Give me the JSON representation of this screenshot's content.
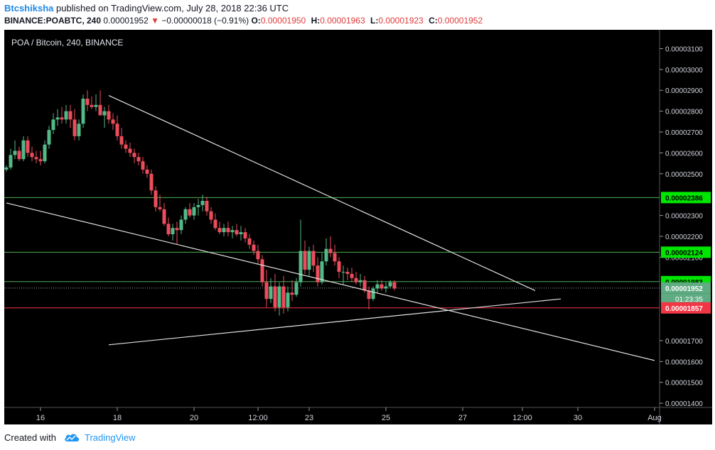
{
  "header": {
    "user": "Btcshiksha",
    "published": "published on TradingView.com, July 28, 2018 22:36 UTC",
    "symbol": "BINANCE:POABTC, 240",
    "last": "0.00001952",
    "change": "−0.00000018 (−0.91%)",
    "o_label": "O:",
    "o": "0.00001950",
    "h_label": "H:",
    "h": "0.00001963",
    "l_label": "L:",
    "l": "0.00001923",
    "c_label": "C:",
    "c": "0.00001952"
  },
  "footer": {
    "created_with": "Created with",
    "brand": "TradingView"
  },
  "chart_data": {
    "type": "candlestick",
    "title": "POA / Bitcoin, 240, BINANCE",
    "ylim": [
      1.38e-05,
      3.19e-05
    ],
    "y_ticks": [
      "0.00003100",
      "0.00003000",
      "0.00002900",
      "0.00002800",
      "0.00002700",
      "0.00002600",
      "0.00002500",
      "0.00002300",
      "0.00002200",
      "0.00002100",
      "0.00001700",
      "0.00001600",
      "0.00001500",
      "0.00001400"
    ],
    "x_ticks": [
      {
        "label": "16",
        "i": 8
      },
      {
        "label": "18",
        "i": 26
      },
      {
        "label": "20",
        "i": 44
      },
      {
        "label": "12:00",
        "i": 59
      },
      {
        "label": "23",
        "i": 71
      },
      {
        "label": "25",
        "i": 89
      },
      {
        "label": "27",
        "i": 107
      },
      {
        "label": "12:00",
        "i": 121
      },
      {
        "label": "30",
        "i": 134
      },
      {
        "label": "Aug",
        "i": 152
      }
    ],
    "price_levels": [
      {
        "value": 2.386e-05,
        "label": "0.00002386",
        "color": "#4caf50"
      },
      {
        "value": 2.124e-05,
        "label": "0.00002124",
        "color": "#4caf50"
      },
      {
        "value": 1.983e-05,
        "label": "0.00001983",
        "color": "#4caf50"
      }
    ],
    "red_level": {
      "value": 1.857e-05,
      "label": "0.00001857",
      "color": "#f23645"
    },
    "last_price": {
      "value": 1.952e-05,
      "label": "0.00001952",
      "timer": "01:23:35",
      "color": "#5fab82"
    },
    "trend_lines": [
      {
        "from": [
          24,
          2.875e-05
        ],
        "to": [
          124,
          1.94e-05
        ]
      },
      {
        "from": [
          0,
          2.36e-05
        ],
        "to": [
          152,
          1.605e-05
        ]
      },
      {
        "from": [
          24,
          1.68e-05
        ],
        "to": [
          130,
          1.9e-05
        ]
      }
    ],
    "candles": [
      [
        2.52e-05,
        2.54e-05,
        2.51e-05,
        2.53e-05
      ],
      [
        2.53e-05,
        2.62e-05,
        2.52e-05,
        2.59e-05
      ],
      [
        2.59e-05,
        2.66e-05,
        2.57e-05,
        2.61e-05
      ],
      [
        2.61e-05,
        2.63e-05,
        2.56e-05,
        2.57e-05
      ],
      [
        2.57e-05,
        2.68e-05,
        2.56e-05,
        2.66e-05
      ],
      [
        2.66e-05,
        2.68e-05,
        2.58e-05,
        2.6e-05
      ],
      [
        2.6e-05,
        2.63e-05,
        2.56e-05,
        2.58e-05
      ],
      [
        2.58e-05,
        2.61e-05,
        2.55e-05,
        2.57e-05
      ],
      [
        2.57e-05,
        2.61e-05,
        2.54e-05,
        2.56e-05
      ],
      [
        2.56e-05,
        2.66e-05,
        2.55e-05,
        2.64e-05
      ],
      [
        2.64e-05,
        2.73e-05,
        2.62e-05,
        2.71e-05
      ],
      [
        2.71e-05,
        2.79e-05,
        2.69e-05,
        2.76e-05
      ],
      [
        2.76e-05,
        2.81e-05,
        2.73e-05,
        2.77e-05
      ],
      [
        2.77e-05,
        2.82e-05,
        2.74e-05,
        2.76e-05
      ],
      [
        2.76e-05,
        2.83e-05,
        2.74e-05,
        2.8e-05
      ],
      [
        2.8e-05,
        2.83e-05,
        2.72e-05,
        2.76e-05
      ],
      [
        2.76e-05,
        2.81e-05,
        2.66e-05,
        2.68e-05
      ],
      [
        2.68e-05,
        2.76e-05,
        2.66e-05,
        2.74e-05
      ],
      [
        2.74e-05,
        2.88e-05,
        2.72e-05,
        2.86e-05
      ],
      [
        2.86e-05,
        2.9e-05,
        2.8e-05,
        2.83e-05
      ],
      [
        2.83e-05,
        2.87e-05,
        2.81e-05,
        2.82e-05
      ],
      [
        2.82e-05,
        2.88e-05,
        2.8e-05,
        2.83e-05
      ],
      [
        2.83e-05,
        2.9e-05,
        2.79e-05,
        2.78e-05
      ],
      [
        2.78e-05,
        2.82e-05,
        2.72e-05,
        2.8e-05
      ],
      [
        2.8e-05,
        2.83e-05,
        2.74e-05,
        2.76e-05
      ],
      [
        2.76e-05,
        2.79e-05,
        2.71e-05,
        2.74e-05
      ],
      [
        2.74e-05,
        2.78e-05,
        2.66e-05,
        2.68e-05
      ],
      [
        2.68e-05,
        2.72e-05,
        2.62e-05,
        2.64e-05
      ],
      [
        2.64e-05,
        2.66e-05,
        2.6e-05,
        2.62e-05
      ],
      [
        2.62e-05,
        2.65e-05,
        2.58e-05,
        2.6e-05
      ],
      [
        2.6e-05,
        2.62e-05,
        2.55e-05,
        2.58e-05
      ],
      [
        2.58e-05,
        2.6e-05,
        2.54e-05,
        2.56e-05
      ],
      [
        2.56e-05,
        2.58e-05,
        2.5e-05,
        2.52e-05
      ],
      [
        2.52e-05,
        2.54e-05,
        2.48e-05,
        2.5e-05
      ],
      [
        2.5e-05,
        2.52e-05,
        2.4e-05,
        2.42e-05
      ],
      [
        2.42e-05,
        2.44e-05,
        2.32e-05,
        2.34e-05
      ],
      [
        2.34e-05,
        2.4e-05,
        2.32e-05,
        2.33e-05
      ],
      [
        2.33e-05,
        2.36e-05,
        2.25e-05,
        2.26e-05
      ],
      [
        2.26e-05,
        2.29e-05,
        2.2e-05,
        2.21e-05
      ],
      [
        2.21e-05,
        2.26e-05,
        2.18e-05,
        2.24e-05
      ],
      [
        2.24e-05,
        2.27e-05,
        2.16e-05,
        2.23e-05
      ],
      [
        2.23e-05,
        2.3e-05,
        2.21e-05,
        2.28e-05
      ],
      [
        2.28e-05,
        2.34e-05,
        2.26e-05,
        2.33e-05
      ],
      [
        2.33e-05,
        2.36e-05,
        2.29e-05,
        2.3e-05
      ],
      [
        2.3e-05,
        2.36e-05,
        2.28e-05,
        2.34e-05
      ],
      [
        2.34e-05,
        2.38e-05,
        2.3e-05,
        2.35e-05
      ],
      [
        2.35e-05,
        2.4e-05,
        2.32e-05,
        2.37e-05
      ],
      [
        2.37e-05,
        2.39e-05,
        2.3e-05,
        2.32e-05
      ],
      [
        2.32e-05,
        2.34e-05,
        2.26e-05,
        2.28e-05
      ],
      [
        2.28e-05,
        2.31e-05,
        2.23e-05,
        2.24e-05
      ],
      [
        2.24e-05,
        2.27e-05,
        2.21e-05,
        2.22e-05
      ],
      [
        2.22e-05,
        2.26e-05,
        2.2e-05,
        2.24e-05
      ],
      [
        2.24e-05,
        2.27e-05,
        2.2e-05,
        2.22e-05
      ],
      [
        2.22e-05,
        2.25e-05,
        2.19e-05,
        2.23e-05
      ],
      [
        2.23e-05,
        2.26e-05,
        2.2e-05,
        2.21e-05
      ],
      [
        2.21e-05,
        2.25e-05,
        2.18e-05,
        2.22e-05
      ],
      [
        2.22e-05,
        2.24e-05,
        2.17e-05,
        2.19e-05
      ],
      [
        2.19e-05,
        2.21e-05,
        2.14e-05,
        2.16e-05
      ],
      [
        2.16e-05,
        2.18e-05,
        2.11e-05,
        2.13e-05
      ],
      [
        2.13e-05,
        2.16e-05,
        2.07e-05,
        2.09e-05
      ],
      [
        2.09e-05,
        2.11e-05,
        1.96e-05,
        1.98e-05
      ],
      [
        1.98e-05,
        2.04e-05,
        1.86e-05,
        1.9e-05
      ],
      [
        1.9e-05,
        2e-05,
        1.88e-05,
        1.96e-05
      ],
      [
        1.96e-05,
        2.02e-05,
        1.84e-05,
        1.86e-05
      ],
      [
        1.86e-05,
        1.98e-05,
        1.82e-05,
        1.96e-05
      ],
      [
        1.96e-05,
        2.01e-05,
        1.83e-05,
        1.86e-05
      ],
      [
        1.86e-05,
        1.96e-05,
        1.84e-05,
        1.93e-05
      ],
      [
        1.93e-05,
        1.99e-05,
        1.89e-05,
        1.92e-05
      ],
      [
        1.92e-05,
        2e-05,
        1.91e-05,
        1.98e-05
      ],
      [
        1.98e-05,
        2.28e-05,
        1.96e-05,
        2.13e-05
      ],
      [
        2.13e-05,
        2.18e-05,
        2.02e-05,
        2.04e-05
      ],
      [
        2.04e-05,
        2.15e-05,
        2.01e-05,
        2.13e-05
      ],
      [
        2.13e-05,
        2.16e-05,
        2.03e-05,
        2.06e-05
      ],
      [
        2.06e-05,
        2.1e-05,
        1.96e-05,
        1.98e-05
      ],
      [
        1.98e-05,
        2.12e-05,
        1.97e-05,
        2.08e-05
      ],
      [
        2.08e-05,
        2.19e-05,
        2.06e-05,
        2.14e-05
      ],
      [
        2.14e-05,
        2.2e-05,
        2.1e-05,
        2.12e-05
      ],
      [
        2.12e-05,
        2.16e-05,
        2.06e-05,
        2.08e-05
      ],
      [
        2.08e-05,
        2.1e-05,
        2e-05,
        2.03e-05
      ],
      [
        2.03e-05,
        2.06e-05,
        1.97e-05,
        2.03e-05
      ],
      [
        2.03e-05,
        2.05e-05,
        1.99e-05,
        2.02e-05
      ],
      [
        2.02e-05,
        2.05e-05,
        1.98e-05,
        2e-05
      ],
      [
        2e-05,
        2.03e-05,
        1.97e-05,
        1.98e-05
      ],
      [
        1.98e-05,
        2.02e-05,
        1.96e-05,
        1.99e-05
      ],
      [
        1.99e-05,
        2.01e-05,
        1.93e-05,
        1.94e-05
      ],
      [
        1.94e-05,
        1.96e-05,
        1.85e-05,
        1.9e-05
      ],
      [
        1.9e-05,
        1.96e-05,
        1.89e-05,
        1.95e-05
      ],
      [
        1.95e-05,
        1.99e-05,
        1.93e-05,
        1.97e-05
      ],
      [
        1.97e-05,
        1.99e-05,
        1.94e-05,
        1.95e-05
      ],
      [
        1.95e-05,
        1.98e-05,
        1.93e-05,
        1.96e-05
      ],
      [
        1.96e-05,
        1.99e-05,
        1.95e-05,
        1.98e-05
      ],
      [
        1.98e-05,
        1.99e-05,
        1.94e-05,
        1.95e-05
      ]
    ]
  }
}
